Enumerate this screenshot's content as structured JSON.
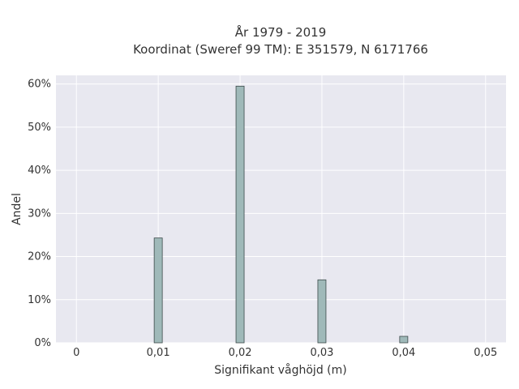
{
  "chart_data": {
    "type": "bar",
    "title_lines": [
      "År 1979 - 2019",
      "Koordinat (Sweref 99 TM): E 351579, N 6171766"
    ],
    "xlabel": "Signifikant våghöjd (m)",
    "ylabel": "Andel",
    "x": [
      0.01,
      0.02,
      0.03,
      0.04
    ],
    "values": [
      24.3,
      59.5,
      14.6,
      1.5
    ],
    "xlim": [
      -0.0025,
      0.0525
    ],
    "ylim": [
      0,
      62
    ],
    "xticks": [
      0,
      0.01,
      0.02,
      0.03,
      0.04,
      0.05
    ],
    "xtick_labels": [
      "0",
      "0,01",
      "0,02",
      "0,03",
      "0,04",
      "0,05"
    ],
    "yticks": [
      0,
      10,
      20,
      30,
      40,
      50,
      60
    ],
    "ytick_labels": [
      "0%",
      "10%",
      "20%",
      "30%",
      "40%",
      "50%",
      "60%"
    ],
    "grid": true,
    "bar_color": "#9fb9b9",
    "bar_edge_color": "#3c4a4a",
    "plot_background": "#e8e8f0"
  }
}
